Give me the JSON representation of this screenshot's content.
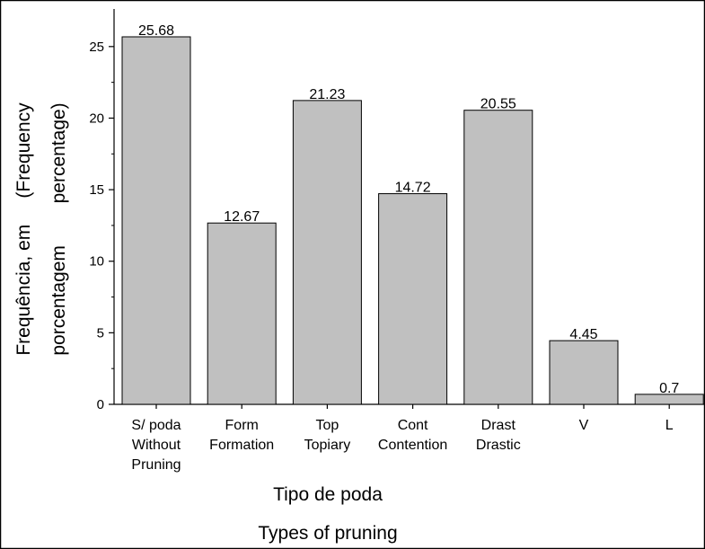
{
  "chart_data": {
    "type": "bar",
    "ylabel_lines": [
      "Frequência, em     (Frequency",
      "porcentagem        percentage)"
    ],
    "xlabel_lines": [
      "Tipo de poda",
      "Types of pruning"
    ],
    "categories": [
      {
        "lines": [
          "S/ poda",
          "Without",
          "Pruning"
        ]
      },
      {
        "lines": [
          "Form",
          "Formation"
        ]
      },
      {
        "lines": [
          "Top",
          "Topiary"
        ]
      },
      {
        "lines": [
          "Cont",
          "Contention"
        ]
      },
      {
        "lines": [
          "Drast",
          "Drastic"
        ]
      },
      {
        "lines": [
          "V"
        ]
      },
      {
        "lines": [
          "L"
        ]
      }
    ],
    "values": [
      25.68,
      12.67,
      21.23,
      14.72,
      20.55,
      4.45,
      0.7
    ],
    "value_labels": [
      "25.68",
      "12.67",
      "21.23",
      "14.72",
      "20.55",
      "4.45",
      "0.7"
    ],
    "ylim": [
      0,
      27.5
    ],
    "yticks": [
      0,
      5,
      10,
      15,
      20,
      25
    ],
    "bar_color": "#c0c0c0",
    "grid": false,
    "legend": "none"
  }
}
